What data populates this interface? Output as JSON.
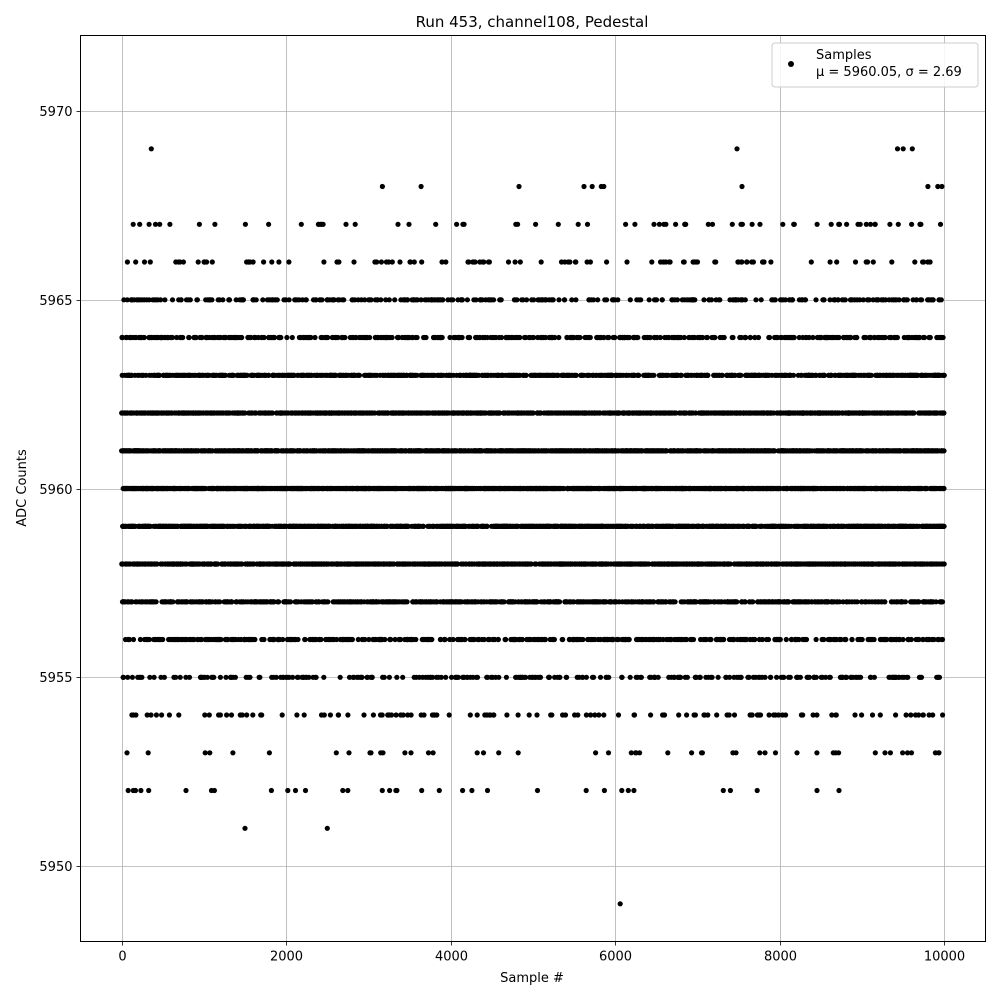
{
  "chart_data": {
    "type": "scatter",
    "title": "Run 453, channel108, Pedestal",
    "xlabel": "Sample #",
    "ylabel": "ADC Counts",
    "xlim": [
      -500,
      10500
    ],
    "ylim": [
      5948,
      5972
    ],
    "xticks": [
      0,
      2000,
      4000,
      6000,
      8000,
      10000
    ],
    "yticks": [
      5950,
      5955,
      5960,
      5965,
      5970
    ],
    "xtick_labels": [
      "0",
      "2000",
      "4000",
      "6000",
      "8000",
      "10000"
    ],
    "ytick_labels": [
      "5950",
      "5955",
      "5960",
      "5965",
      "5970"
    ],
    "grid": true,
    "legend": {
      "placement": "top-right",
      "entries": [
        {
          "label": "Samples",
          "stats": "μ = 5960.05, σ = 2.69"
        }
      ]
    },
    "mean": 5960.05,
    "sigma": 2.69,
    "x_range": [
      0,
      9999
    ],
    "num_samples": 10000,
    "marker_color": "#000000",
    "outliers": [
      {
        "x": 360,
        "y": 5969
      },
      {
        "x": 7480,
        "y": 5969
      },
      {
        "x": 9430,
        "y": 5969
      },
      {
        "x": 9500,
        "y": 5969
      },
      {
        "x": 9610,
        "y": 5969
      },
      {
        "x": 930,
        "y": 5966
      },
      {
        "x": 3940,
        "y": 5966
      },
      {
        "x": 4470,
        "y": 5966
      },
      {
        "x": 7490,
        "y": 5966
      },
      {
        "x": 7660,
        "y": 5966
      },
      {
        "x": 3170,
        "y": 5968
      },
      {
        "x": 3640,
        "y": 5968
      },
      {
        "x": 4830,
        "y": 5968
      },
      {
        "x": 5620,
        "y": 5968
      },
      {
        "x": 5720,
        "y": 5968
      },
      {
        "x": 5830,
        "y": 5968
      },
      {
        "x": 5860,
        "y": 5968
      },
      {
        "x": 7540,
        "y": 5968
      },
      {
        "x": 9800,
        "y": 5968
      },
      {
        "x": 9920,
        "y": 5968
      },
      {
        "x": 9970,
        "y": 5968
      },
      {
        "x": 1500,
        "y": 5951
      },
      {
        "x": 2500,
        "y": 5951
      },
      {
        "x": 6060,
        "y": 5949
      }
    ]
  }
}
